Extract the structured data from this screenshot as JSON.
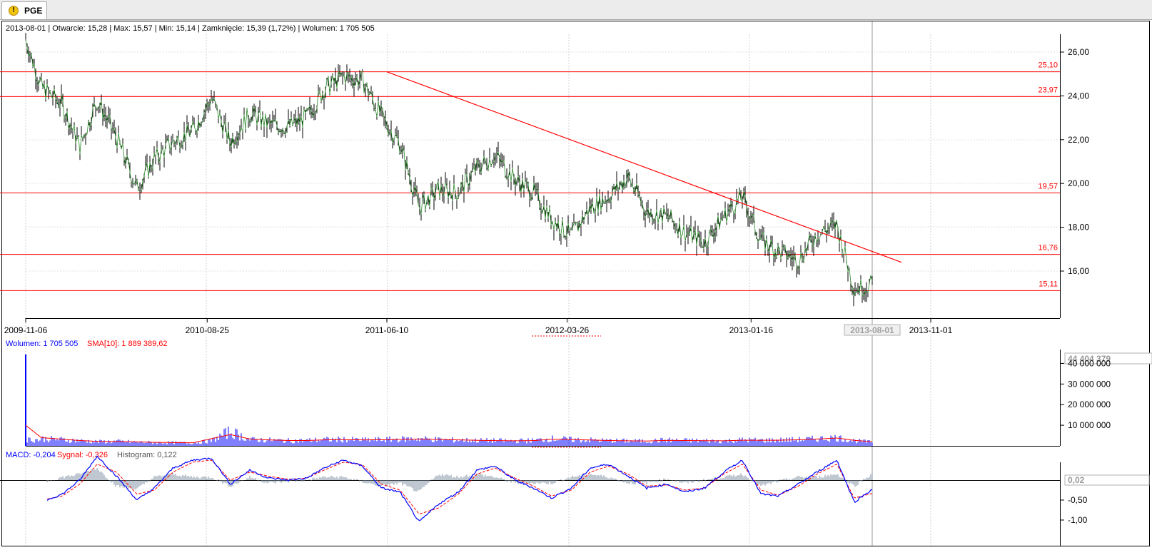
{
  "tab": {
    "label": "PGE",
    "icon": "warning-icon"
  },
  "price_panel": {
    "info_text": "2013-08-01 | Otwarcie: 15,28 | Max: 15,57 | Min: 15,14 | Zamknięcie: 15,39 (1,72%) | Wolumen: 1 705 505",
    "highlight_date": "2013-08-01",
    "x_tick_labels": [
      "2009-11-06",
      "2010-08-25",
      "2011-06-10",
      "2012-03-26",
      "2013-01-16",
      "2013-11-01"
    ],
    "y_tick_labels": [
      "26,00",
      "24,00",
      "22,00",
      "20,00",
      "18,00",
      "16,00"
    ],
    "levels": [
      {
        "value": 25.1,
        "label": "25,10"
      },
      {
        "value": 23.97,
        "label": "23,97"
      },
      {
        "value": 19.57,
        "label": "19,57"
      },
      {
        "value": 16.76,
        "label": "16,76"
      },
      {
        "value": 15.11,
        "label": "15,11"
      }
    ]
  },
  "volume_panel": {
    "legend_volume": "Wolumen: 1 705 505",
    "legend_sma": "SMA[10]: 1 889 389,62",
    "max_label": "44 404 379",
    "y_tick_labels": [
      "40 000 000",
      "30 000 000",
      "20 000 000",
      "10 000 000"
    ]
  },
  "macd_panel": {
    "legend_macd": "MACD: -0,204",
    "legend_signal": "Sygnał: -0,326",
    "legend_hist": "Histogram: 0,122",
    "value_label": "0,02",
    "y_tick_labels": [
      "-0,50",
      "-1,00"
    ]
  },
  "colors": {
    "level_line": "#ff0000",
    "volume": "#0000ff",
    "sma": "#ff0000",
    "macd": "#0000ff",
    "signal": "#ff0000",
    "hist": "#7f8fa0"
  },
  "chart_data": [
    {
      "type": "line",
      "title": "PGE",
      "x": [
        "2009-11-06",
        "2009-12-01",
        "2010-01-04",
        "2010-02-01",
        "2010-03-01",
        "2010-04-01",
        "2010-05-04",
        "2010-06-01",
        "2010-07-01",
        "2010-08-02",
        "2010-09-01",
        "2010-10-01",
        "2010-11-02",
        "2010-12-01",
        "2011-01-03",
        "2011-02-01",
        "2011-03-01",
        "2011-04-01",
        "2011-05-02",
        "2011-06-01",
        "2011-07-01",
        "2011-08-01",
        "2011-09-01",
        "2011-10-03",
        "2011-11-02",
        "2011-12-01",
        "2012-01-02",
        "2012-02-01",
        "2012-03-01",
        "2012-04-02",
        "2012-05-02",
        "2012-06-01",
        "2012-07-02",
        "2012-08-01",
        "2012-09-03",
        "2012-10-01",
        "2012-11-02",
        "2012-12-03",
        "2013-01-02",
        "2013-02-01",
        "2013-03-01",
        "2013-04-02",
        "2013-05-02",
        "2013-06-03",
        "2013-07-01",
        "2013-08-01"
      ],
      "close": [
        26.6,
        24.4,
        23.6,
        21.7,
        23.8,
        22.1,
        19.8,
        21.1,
        21.9,
        22.4,
        23.9,
        21.9,
        23.2,
        22.7,
        22.6,
        23.0,
        24.3,
        24.9,
        24.7,
        23.1,
        21.8,
        18.9,
        19.7,
        19.6,
        20.7,
        21.3,
        20.2,
        19.6,
        18.4,
        17.6,
        18.9,
        19.4,
        20.3,
        18.7,
        18.5,
        17.8,
        17.3,
        18.5,
        19.4,
        17.4,
        16.9,
        16.5,
        17.7,
        18.1,
        15.2,
        15.39
      ],
      "ylim": [
        14.0,
        26.8
      ],
      "x_range": [
        "2009-11-06",
        "2013-11-01"
      ],
      "levels": [
        25.1,
        23.97,
        19.57,
        16.76,
        15.11
      ],
      "trendline": [
        {
          "x": "2011-06-10",
          "y": 25.1
        },
        {
          "x": "2013-01-16",
          "y": 19.5
        },
        {
          "x": "2013-09-15",
          "y": 16.4
        }
      ]
    },
    {
      "type": "bar",
      "name": "Wolumen",
      "x": [
        "2009-11-06",
        "2009-12-01",
        "2010-01-04",
        "2010-02-01",
        "2010-03-01",
        "2010-04-01",
        "2010-05-04",
        "2010-06-01",
        "2010-07-01",
        "2010-08-02",
        "2010-09-01",
        "2010-10-01",
        "2010-11-02",
        "2010-12-01",
        "2011-01-03",
        "2011-02-01",
        "2011-03-01",
        "2011-04-01",
        "2011-05-02",
        "2011-06-01",
        "2011-07-01",
        "2011-08-01",
        "2011-09-01",
        "2011-10-03",
        "2011-11-02",
        "2011-12-01",
        "2012-01-02",
        "2012-02-01",
        "2012-03-01",
        "2012-04-02",
        "2012-05-02",
        "2012-06-01",
        "2012-07-02",
        "2012-08-01",
        "2012-09-03",
        "2012-10-01",
        "2012-11-02",
        "2012-12-03",
        "2013-01-02",
        "2013-02-01",
        "2013-03-01",
        "2013-04-02",
        "2013-05-02",
        "2013-06-03",
        "2013-07-01",
        "2013-08-01"
      ],
      "values": [
        44404379,
        3500000,
        3000000,
        2500000,
        2000000,
        2200000,
        1800000,
        1600000,
        1500000,
        1400000,
        2500000,
        7000000,
        3000000,
        2800000,
        2500000,
        2600000,
        3000000,
        3100000,
        2800000,
        3000000,
        3200000,
        3500000,
        3000000,
        2800000,
        2600000,
        2500000,
        2400000,
        2600000,
        3500000,
        3000000,
        2800000,
        2500000,
        2400000,
        2300000,
        2800000,
        2600000,
        2500000,
        2400000,
        2900000,
        2700000,
        2800000,
        3000000,
        3400000,
        4000000,
        2500000,
        1705505
      ],
      "sma_values": [
        10000000,
        4000000,
        3200000,
        2600000,
        2200000,
        2100000,
        1900000,
        1700000,
        1600000,
        1500000,
        3500000,
        5500000,
        3300000,
        2900000,
        2600000,
        2600000,
        2900000,
        3000000,
        2900000,
        2950000,
        3100000,
        3300000,
        3100000,
        2900000,
        2700000,
        2550000,
        2450000,
        2550000,
        3200000,
        3050000,
        2850000,
        2600000,
        2450000,
        2350000,
        2650000,
        2600000,
        2500000,
        2450000,
        2750000,
        2700000,
        2750000,
        2950000,
        3300000,
        3800000,
        2700000,
        1889389.62
      ],
      "ylim": [
        0,
        45000000
      ]
    },
    {
      "type": "line",
      "name": "MACD",
      "x": [
        "2009-11-06",
        "2009-12-01",
        "2010-01-04",
        "2010-02-01",
        "2010-03-01",
        "2010-04-01",
        "2010-05-04",
        "2010-06-01",
        "2010-07-01",
        "2010-08-02",
        "2010-09-01",
        "2010-10-01",
        "2010-11-02",
        "2010-12-01",
        "2011-01-03",
        "2011-02-01",
        "2011-03-01",
        "2011-04-01",
        "2011-05-02",
        "2011-06-01",
        "2011-07-01",
        "2011-08-01",
        "2011-09-01",
        "2011-10-03",
        "2011-11-02",
        "2011-12-01",
        "2012-01-02",
        "2012-02-01",
        "2012-03-01",
        "2012-04-02",
        "2012-05-02",
        "2012-06-01",
        "2012-07-02",
        "2012-08-01",
        "2012-09-03",
        "2012-10-01",
        "2012-11-02",
        "2012-12-03",
        "2013-01-02",
        "2013-02-01",
        "2013-03-01",
        "2013-04-02",
        "2013-05-02",
        "2013-06-03",
        "2013-07-01",
        "2013-08-01"
      ],
      "macd": [
        -0.4,
        -0.55,
        -0.35,
        0.0,
        0.6,
        0.1,
        -0.5,
        -0.2,
        0.3,
        0.5,
        0.55,
        -0.1,
        0.25,
        0.05,
        0.0,
        0.05,
        0.3,
        0.5,
        0.35,
        -0.2,
        -0.3,
        -1.05,
        -0.6,
        -0.3,
        0.25,
        0.35,
        0.0,
        -0.2,
        -0.45,
        -0.2,
        0.3,
        0.4,
        0.1,
        -0.2,
        -0.1,
        -0.3,
        -0.2,
        0.2,
        0.5,
        -0.35,
        -0.4,
        -0.1,
        0.2,
        0.5,
        -0.55,
        -0.204
      ],
      "signal": [
        -0.35,
        -0.5,
        -0.4,
        -0.1,
        0.4,
        0.2,
        -0.35,
        -0.25,
        0.2,
        0.45,
        0.5,
        0.0,
        0.2,
        0.1,
        0.02,
        0.05,
        0.25,
        0.45,
        0.38,
        -0.1,
        -0.25,
        -0.85,
        -0.7,
        -0.35,
        0.15,
        0.3,
        0.05,
        -0.15,
        -0.4,
        -0.25,
        0.2,
        0.35,
        0.15,
        -0.15,
        -0.12,
        -0.25,
        -0.2,
        0.15,
        0.4,
        -0.25,
        -0.38,
        -0.15,
        0.15,
        0.4,
        -0.45,
        -0.326
      ],
      "ylim": [
        -1.1,
        0.75
      ]
    }
  ]
}
